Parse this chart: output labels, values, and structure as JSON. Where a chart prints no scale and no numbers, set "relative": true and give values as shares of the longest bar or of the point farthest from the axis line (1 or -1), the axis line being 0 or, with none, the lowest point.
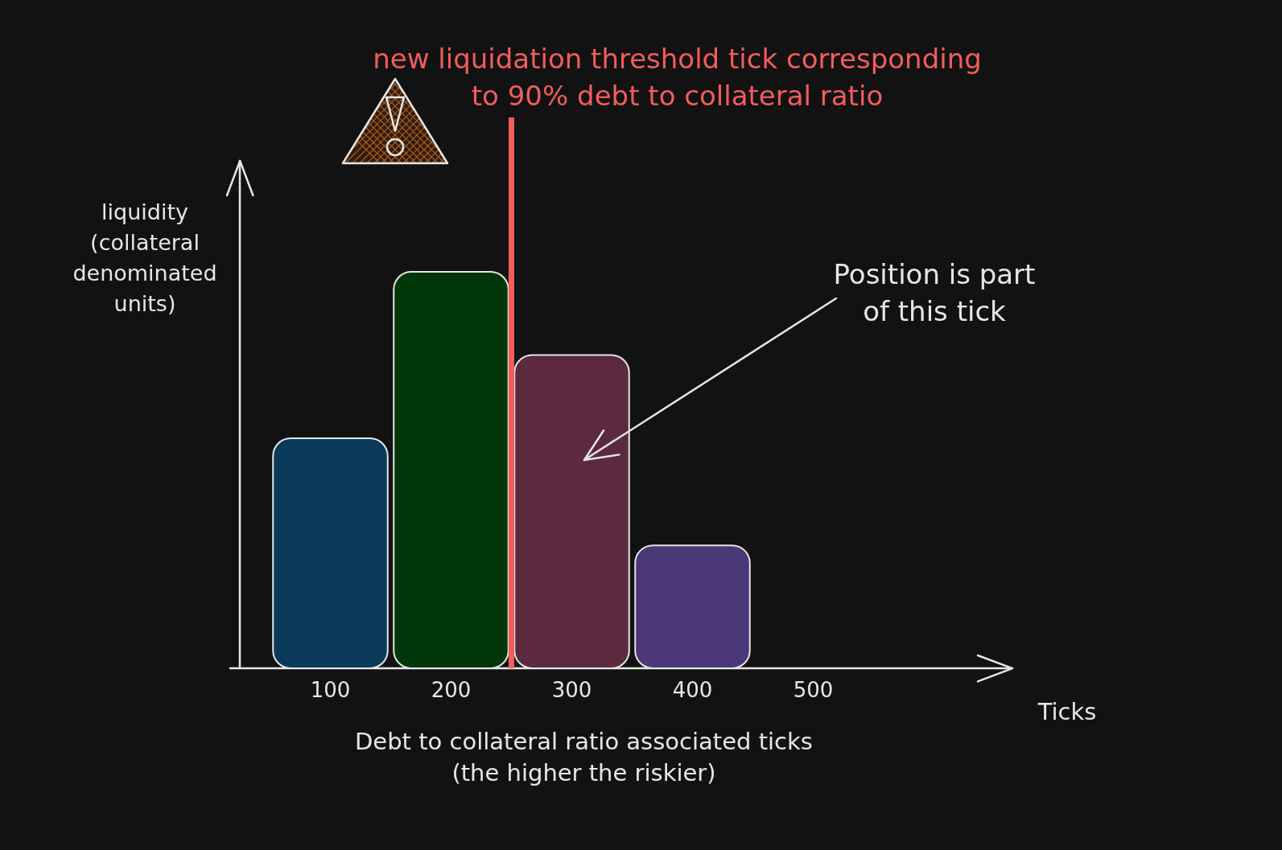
{
  "chart_data": {
    "type": "bar",
    "relative": true,
    "x": [
      100,
      200,
      300,
      400
    ],
    "values": [
      0.58,
      1,
      0.79,
      0.31
    ],
    "colors": [
      "#0b3a5b",
      "#02370a",
      "#5b2a3e",
      "#4a3877"
    ],
    "xlim": [
      25,
      665
    ],
    "xticks": [
      100,
      200,
      300,
      400,
      500
    ],
    "xlabel": "Debt to collateral ratio associated ticks (the higher the riskier)",
    "ylabel": "liquidity (collateral denominated units)",
    "ref_lines": [
      {
        "axis": "x",
        "value": 250,
        "label": "new liquidation threshold tick corresponding to 90% debt to collateral ratio",
        "color": "#f05d5b"
      }
    ],
    "annotations": [
      "Ticks",
      "Position is part of this tick"
    ],
    "legend": false
  }
}
